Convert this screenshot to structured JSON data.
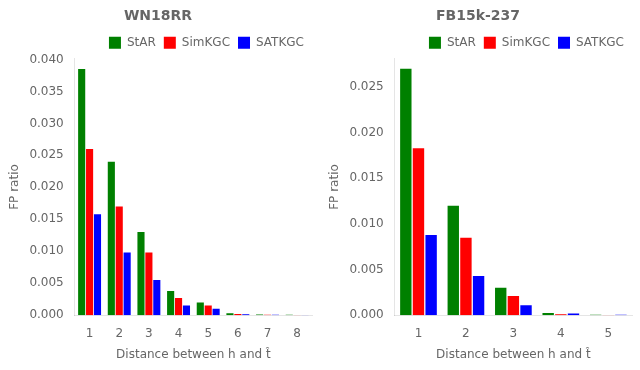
{
  "chart_data": [
    {
      "type": "bar",
      "title": "WN18RR",
      "xlabel": "Distance between h and t̂",
      "ylabel": "FP ratio",
      "categories": [
        "1",
        "2",
        "3",
        "4",
        "5",
        "6",
        "7",
        "8"
      ],
      "series": [
        {
          "name": "StAR",
          "color": "#008000",
          "values": [
            0.0385,
            0.024,
            0.013,
            0.0038,
            0.002,
            0.0003,
            0.00012,
            6e-05
          ]
        },
        {
          "name": "SimKGC",
          "color": "#ff0000",
          "values": [
            0.026,
            0.017,
            0.0098,
            0.0027,
            0.0015,
            0.0002,
            8e-05,
            4e-05
          ]
        },
        {
          "name": "SATKGC",
          "color": "#0000ff",
          "values": [
            0.0158,
            0.0098,
            0.0055,
            0.0015,
            0.001,
            0.00015,
            6e-05,
            3e-05
          ]
        }
      ],
      "ylim": [
        0,
        0.0401
      ],
      "yticks": [
        {
          "value": 0.0,
          "label": "0.000"
        },
        {
          "value": 0.005,
          "label": "0.005"
        },
        {
          "value": 0.01,
          "label": "0.010"
        },
        {
          "value": 0.015,
          "label": "0.015"
        },
        {
          "value": 0.02,
          "label": "0.020"
        },
        {
          "value": 0.025,
          "label": "0.025"
        },
        {
          "value": 0.03,
          "label": "0.030"
        },
        {
          "value": 0.035,
          "label": "0.035"
        },
        {
          "value": 0.04,
          "label": "0.040"
        }
      ],
      "grid": false,
      "legend": "upper right"
    },
    {
      "type": "bar",
      "title": "FB15k-237",
      "xlabel": "Distance between h and t̂",
      "ylabel": "FP ratio",
      "categories": [
        "1",
        "2",
        "3",
        "4",
        "5"
      ],
      "series": [
        {
          "name": "StAR",
          "color": "#008000",
          "values": [
            0.027,
            0.012,
            0.003,
            0.00025,
            5e-05
          ]
        },
        {
          "name": "SimKGC",
          "color": "#ff0000",
          "values": [
            0.0183,
            0.0085,
            0.0021,
            0.0001,
            2e-05
          ]
        },
        {
          "name": "SATKGC",
          "color": "#0000ff",
          "values": [
            0.0088,
            0.0043,
            0.0011,
            0.00018,
            6e-05
          ]
        }
      ],
      "ylim": [
        0,
        0.0281
      ],
      "yticks": [
        {
          "value": 0.0,
          "label": "0.000"
        },
        {
          "value": 0.005,
          "label": "0.005"
        },
        {
          "value": 0.01,
          "label": "0.010"
        },
        {
          "value": 0.015,
          "label": "0.015"
        },
        {
          "value": 0.02,
          "label": "0.020"
        },
        {
          "value": 0.025,
          "label": "0.025"
        }
      ],
      "grid": false,
      "legend": "upper right"
    }
  ]
}
